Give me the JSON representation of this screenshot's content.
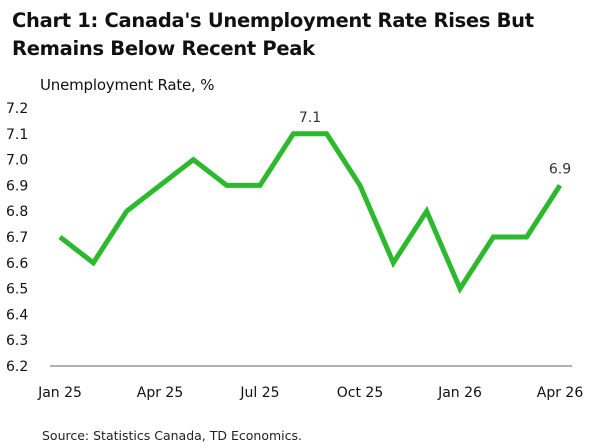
{
  "title_lines": [
    "Chart 1: Canada's Unemployment Rate Rises But",
    "Remains Below Recent Peak"
  ],
  "source": "Source: Statistics Canada, TD Economics.",
  "colors": {
    "line": "#2db92d",
    "axis": "#666666"
  },
  "chart_data": {
    "type": "line",
    "title": "Chart 1: Canada's Unemployment Rate Rises But Remains Below Recent Peak",
    "ylabel": "Unemployment Rate, %",
    "xlabel": "",
    "ylim": [
      6.2,
      7.2
    ],
    "yticks": [
      "7.2",
      "7.1",
      "7.0",
      "6.9",
      "6.8",
      "6.7",
      "6.6",
      "6.5",
      "6.4",
      "6.3",
      "6.2"
    ],
    "x": [
      "Jan 25",
      "Feb 25",
      "Mar 25",
      "Apr 25",
      "May 25",
      "Jun 25",
      "Jul 25",
      "Aug 25",
      "Sep 25",
      "Oct 25",
      "Nov 25",
      "Dec 25",
      "Jan 26",
      "Feb 26",
      "Mar 26",
      "Apr 26"
    ],
    "xticks": [
      "Jan 25",
      "Apr 25",
      "Jul 25",
      "Oct 25",
      "Jan 26",
      "Apr 26"
    ],
    "series": [
      {
        "values": [
          6.7,
          6.6,
          6.8,
          6.9,
          7.0,
          6.9,
          6.9,
          7.1,
          7.1,
          6.9,
          6.6,
          6.8,
          6.5,
          6.7,
          6.7,
          6.9
        ]
      }
    ],
    "annotations": [
      {
        "x": "Aug 25",
        "text": "7.1"
      },
      {
        "x": "Apr 26",
        "text": "6.9"
      }
    ],
    "grid": false,
    "legend": "none"
  }
}
